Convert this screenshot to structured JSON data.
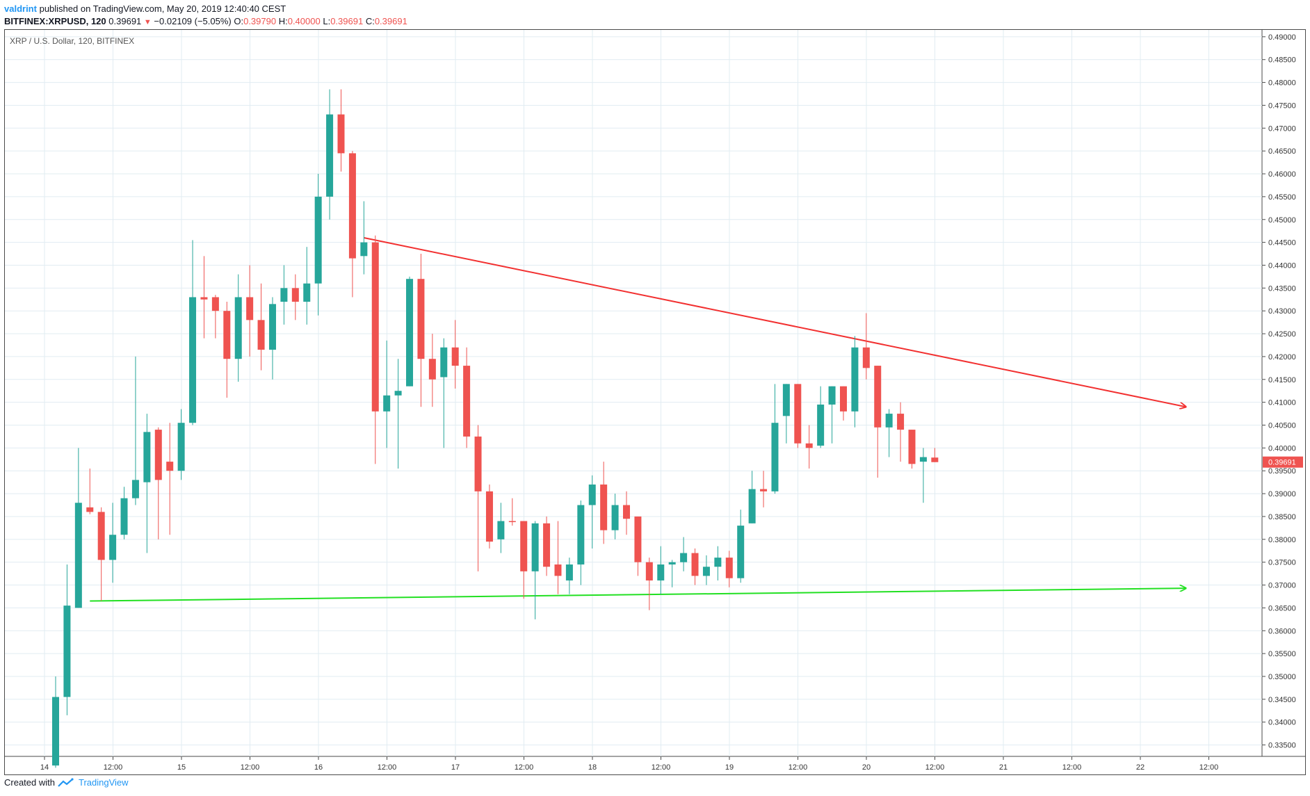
{
  "header": {
    "author": "valdrint",
    "published_text": "published on TradingView.com, May 20, 2019 12:40:40 CEST",
    "symbol": "BITFINEX:XRPUSD, 120",
    "last": "0.39691",
    "change": "−0.02109 (−5.05%)",
    "o_label": "O:",
    "o_value": "0.39790",
    "h_label": "H:",
    "h_value": "0.40000",
    "l_label": "L:",
    "l_value": "0.39691",
    "c_label": "C:",
    "c_value": "0.39691"
  },
  "footer": {
    "created_with": "Created with",
    "brand": "TradingView"
  },
  "chart_data": {
    "type": "candlestick",
    "title": "XRP / U.S. Dollar, 120, BITFINEX",
    "last_price_label": "0.39691",
    "ylim": [
      0.3325,
      0.4915
    ],
    "y_ticks": [
      "0.49000",
      "0.48500",
      "0.48000",
      "0.47500",
      "0.47000",
      "0.46500",
      "0.46000",
      "0.45500",
      "0.45000",
      "0.44500",
      "0.44000",
      "0.43500",
      "0.43000",
      "0.42500",
      "0.42000",
      "0.41500",
      "0.41000",
      "0.40500",
      "0.40000",
      "0.39500",
      "0.39000",
      "0.38500",
      "0.38000",
      "0.37500",
      "0.37000",
      "0.36500",
      "0.36000",
      "0.35500",
      "0.35000",
      "0.34500",
      "0.34000",
      "0.33500"
    ],
    "x_ticks": [
      "14",
      "12:00",
      "15",
      "12:00",
      "16",
      "12:00",
      "17",
      "12:00",
      "18",
      "12:00",
      "19",
      "12:00",
      "20",
      "12:00",
      "21",
      "12:00",
      "22",
      "12:00"
    ],
    "grid": true,
    "colors": {
      "up": "#26a69a",
      "down": "#ef5350",
      "resistance": "#f23030",
      "support": "#22e022",
      "grid": "#e1ecf2",
      "axis_text": "#333333"
    },
    "candles": [
      {
        "t": 1,
        "o": 0.3305,
        "h": 0.35,
        "l": 0.33,
        "c": 0.3455
      },
      {
        "t": 2,
        "o": 0.3455,
        "h": 0.3745,
        "l": 0.3415,
        "c": 0.3655
      },
      {
        "t": 3,
        "o": 0.365,
        "h": 0.4,
        "l": 0.365,
        "c": 0.388
      },
      {
        "t": 4,
        "o": 0.387,
        "h": 0.3955,
        "l": 0.3855,
        "c": 0.386
      },
      {
        "t": 5,
        "o": 0.386,
        "h": 0.387,
        "l": 0.3665,
        "c": 0.3755
      },
      {
        "t": 6,
        "o": 0.3755,
        "h": 0.388,
        "l": 0.3705,
        "c": 0.381
      },
      {
        "t": 7,
        "o": 0.381,
        "h": 0.3915,
        "l": 0.38,
        "c": 0.389
      },
      {
        "t": 8,
        "o": 0.389,
        "h": 0.42,
        "l": 0.3875,
        "c": 0.393
      },
      {
        "t": 9,
        "o": 0.3925,
        "h": 0.4075,
        "l": 0.377,
        "c": 0.4035
      },
      {
        "t": 10,
        "o": 0.404,
        "h": 0.4045,
        "l": 0.38,
        "c": 0.393
      },
      {
        "t": 11,
        "o": 0.397,
        "h": 0.4055,
        "l": 0.381,
        "c": 0.395
      },
      {
        "t": 12,
        "o": 0.395,
        "h": 0.4085,
        "l": 0.393,
        "c": 0.4055
      },
      {
        "t": 13,
        "o": 0.4055,
        "h": 0.4455,
        "l": 0.405,
        "c": 0.433
      },
      {
        "t": 14,
        "o": 0.433,
        "h": 0.442,
        "l": 0.424,
        "c": 0.4325
      },
      {
        "t": 15,
        "o": 0.433,
        "h": 0.4335,
        "l": 0.424,
        "c": 0.43
      },
      {
        "t": 16,
        "o": 0.43,
        "h": 0.432,
        "l": 0.411,
        "c": 0.4195
      },
      {
        "t": 17,
        "o": 0.4195,
        "h": 0.438,
        "l": 0.4145,
        "c": 0.433
      },
      {
        "t": 18,
        "o": 0.433,
        "h": 0.44,
        "l": 0.42,
        "c": 0.428
      },
      {
        "t": 19,
        "o": 0.428,
        "h": 0.436,
        "l": 0.417,
        "c": 0.4215
      },
      {
        "t": 20,
        "o": 0.4215,
        "h": 0.433,
        "l": 0.415,
        "c": 0.4315
      },
      {
        "t": 21,
        "o": 0.432,
        "h": 0.44,
        "l": 0.427,
        "c": 0.435
      },
      {
        "t": 22,
        "o": 0.435,
        "h": 0.438,
        "l": 0.428,
        "c": 0.432
      },
      {
        "t": 23,
        "o": 0.432,
        "h": 0.444,
        "l": 0.427,
        "c": 0.436
      },
      {
        "t": 24,
        "o": 0.436,
        "h": 0.46,
        "l": 0.429,
        "c": 0.455
      },
      {
        "t": 25,
        "o": 0.455,
        "h": 0.4785,
        "l": 0.45,
        "c": 0.473
      },
      {
        "t": 26,
        "o": 0.473,
        "h": 0.4785,
        "l": 0.4605,
        "c": 0.4645
      },
      {
        "t": 27,
        "o": 0.4645,
        "h": 0.465,
        "l": 0.433,
        "c": 0.4415
      },
      {
        "t": 28,
        "o": 0.442,
        "h": 0.454,
        "l": 0.438,
        "c": 0.445
      },
      {
        "t": 29,
        "o": 0.445,
        "h": 0.4465,
        "l": 0.3965,
        "c": 0.408
      },
      {
        "t": 30,
        "o": 0.408,
        "h": 0.4235,
        "l": 0.4,
        "c": 0.4115
      },
      {
        "t": 31,
        "o": 0.4115,
        "h": 0.4195,
        "l": 0.3955,
        "c": 0.4125
      },
      {
        "t": 32,
        "o": 0.4135,
        "h": 0.4375,
        "l": 0.4135,
        "c": 0.437
      },
      {
        "t": 33,
        "o": 0.437,
        "h": 0.4425,
        "l": 0.409,
        "c": 0.4195
      },
      {
        "t": 34,
        "o": 0.4195,
        "h": 0.425,
        "l": 0.409,
        "c": 0.415
      },
      {
        "t": 35,
        "o": 0.4155,
        "h": 0.424,
        "l": 0.4,
        "c": 0.422
      },
      {
        "t": 36,
        "o": 0.422,
        "h": 0.428,
        "l": 0.413,
        "c": 0.418
      },
      {
        "t": 37,
        "o": 0.418,
        "h": 0.422,
        "l": 0.4,
        "c": 0.4025
      },
      {
        "t": 38,
        "o": 0.4025,
        "h": 0.405,
        "l": 0.373,
        "c": 0.3905
      },
      {
        "t": 39,
        "o": 0.3905,
        "h": 0.392,
        "l": 0.378,
        "c": 0.3795
      },
      {
        "t": 40,
        "o": 0.38,
        "h": 0.388,
        "l": 0.377,
        "c": 0.384
      },
      {
        "t": 41,
        "o": 0.384,
        "h": 0.389,
        "l": 0.383,
        "c": 0.3838
      },
      {
        "t": 42,
        "o": 0.384,
        "h": 0.384,
        "l": 0.367,
        "c": 0.373
      },
      {
        "t": 43,
        "o": 0.373,
        "h": 0.384,
        "l": 0.3625,
        "c": 0.3835
      },
      {
        "t": 44,
        "o": 0.3835,
        "h": 0.385,
        "l": 0.372,
        "c": 0.374
      },
      {
        "t": 45,
        "o": 0.3745,
        "h": 0.384,
        "l": 0.368,
        "c": 0.372
      },
      {
        "t": 46,
        "o": 0.371,
        "h": 0.376,
        "l": 0.368,
        "c": 0.3745
      },
      {
        "t": 47,
        "o": 0.3745,
        "h": 0.3885,
        "l": 0.37,
        "c": 0.3875
      },
      {
        "t": 48,
        "o": 0.3875,
        "h": 0.394,
        "l": 0.378,
        "c": 0.392
      },
      {
        "t": 49,
        "o": 0.392,
        "h": 0.397,
        "l": 0.379,
        "c": 0.382
      },
      {
        "t": 50,
        "o": 0.382,
        "h": 0.39,
        "l": 0.38,
        "c": 0.3875
      },
      {
        "t": 51,
        "o": 0.3875,
        "h": 0.3905,
        "l": 0.381,
        "c": 0.3845
      },
      {
        "t": 52,
        "o": 0.385,
        "h": 0.385,
        "l": 0.372,
        "c": 0.375
      },
      {
        "t": 53,
        "o": 0.375,
        "h": 0.376,
        "l": 0.3645,
        "c": 0.371
      },
      {
        "t": 54,
        "o": 0.371,
        "h": 0.3785,
        "l": 0.368,
        "c": 0.3745
      },
      {
        "t": 55,
        "o": 0.3745,
        "h": 0.3755,
        "l": 0.3695,
        "c": 0.375
      },
      {
        "t": 56,
        "o": 0.375,
        "h": 0.3805,
        "l": 0.373,
        "c": 0.377
      },
      {
        "t": 57,
        "o": 0.377,
        "h": 0.378,
        "l": 0.37,
        "c": 0.372
      },
      {
        "t": 58,
        "o": 0.372,
        "h": 0.3765,
        "l": 0.37,
        "c": 0.374
      },
      {
        "t": 59,
        "o": 0.374,
        "h": 0.3785,
        "l": 0.371,
        "c": 0.376
      },
      {
        "t": 60,
        "o": 0.376,
        "h": 0.3775,
        "l": 0.3695,
        "c": 0.3715
      },
      {
        "t": 61,
        "o": 0.3715,
        "h": 0.3865,
        "l": 0.3705,
        "c": 0.383
      },
      {
        "t": 62,
        "o": 0.3835,
        "h": 0.395,
        "l": 0.3835,
        "c": 0.391
      },
      {
        "t": 63,
        "o": 0.391,
        "h": 0.395,
        "l": 0.387,
        "c": 0.3905
      },
      {
        "t": 64,
        "o": 0.3905,
        "h": 0.414,
        "l": 0.39,
        "c": 0.4055
      },
      {
        "t": 65,
        "o": 0.407,
        "h": 0.414,
        "l": 0.401,
        "c": 0.414
      },
      {
        "t": 66,
        "o": 0.414,
        "h": 0.414,
        "l": 0.4,
        "c": 0.401
      },
      {
        "t": 67,
        "o": 0.401,
        "h": 0.405,
        "l": 0.3955,
        "c": 0.4
      },
      {
        "t": 68,
        "o": 0.4005,
        "h": 0.4135,
        "l": 0.4,
        "c": 0.4095
      },
      {
        "t": 69,
        "o": 0.4095,
        "h": 0.4135,
        "l": 0.401,
        "c": 0.4135
      },
      {
        "t": 70,
        "o": 0.4135,
        "h": 0.4135,
        "l": 0.406,
        "c": 0.408
      },
      {
        "t": 71,
        "o": 0.408,
        "h": 0.4245,
        "l": 0.4045,
        "c": 0.422
      },
      {
        "t": 72,
        "o": 0.422,
        "h": 0.4295,
        "l": 0.415,
        "c": 0.4175
      },
      {
        "t": 73,
        "o": 0.418,
        "h": 0.418,
        "l": 0.3935,
        "c": 0.4045
      },
      {
        "t": 74,
        "o": 0.4045,
        "h": 0.4085,
        "l": 0.398,
        "c": 0.4075
      },
      {
        "t": 75,
        "o": 0.4075,
        "h": 0.41,
        "l": 0.397,
        "c": 0.404
      },
      {
        "t": 76,
        "o": 0.404,
        "h": 0.404,
        "l": 0.3955,
        "c": 0.3965
      },
      {
        "t": 77,
        "o": 0.397,
        "h": 0.4,
        "l": 0.388,
        "c": 0.398
      },
      {
        "t": 78,
        "o": 0.3979,
        "h": 0.4,
        "l": 0.3969,
        "c": 0.3969
      }
    ],
    "trendlines": [
      {
        "name": "resistance",
        "from": {
          "t": 28,
          "y": 0.446
        },
        "to": {
          "t": 100,
          "y": 0.409
        },
        "arrow": true
      },
      {
        "name": "support",
        "from": {
          "t": 4,
          "y": 0.3665
        },
        "to": {
          "t": 100,
          "y": 0.3693
        },
        "arrow": true
      }
    ]
  }
}
